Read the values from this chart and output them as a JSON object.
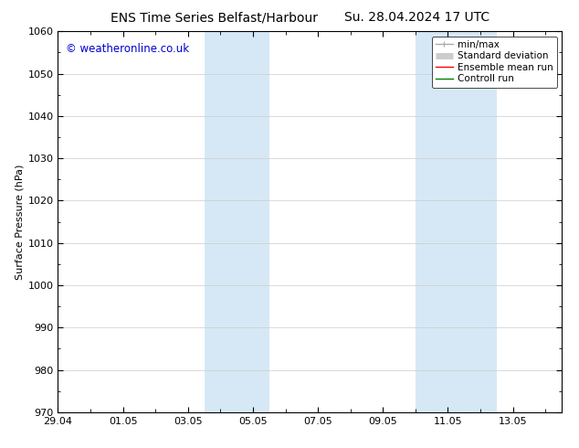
{
  "title_left": "ENS Time Series Belfast/Harbour",
  "title_right": "Su. 28.04.2024 17 UTC",
  "ylabel": "Surface Pressure (hPa)",
  "watermark": "© weatheronline.co.uk",
  "watermark_color": "#0000cc",
  "ylim": [
    970,
    1060
  ],
  "yticks": [
    970,
    980,
    990,
    1000,
    1010,
    1020,
    1030,
    1040,
    1050,
    1060
  ],
  "xlim": [
    0,
    15.5
  ],
  "xtick_labels": [
    "29.04",
    "01.05",
    "03.05",
    "05.05",
    "07.05",
    "09.05",
    "11.05",
    "13.05"
  ],
  "xtick_positions": [
    0,
    2,
    4,
    6,
    8,
    10,
    12,
    14
  ],
  "shaded_bands": [
    {
      "x_start": 4.5,
      "x_end": 6.5
    },
    {
      "x_start": 11.0,
      "x_end": 13.5
    }
  ],
  "shaded_color": "#d6e8f5",
  "background_color": "#ffffff",
  "grid_color": "#cccccc",
  "legend_entries": [
    {
      "label": "min/max",
      "color": "#aaaaaa",
      "lw": 1.0,
      "style": "minmax"
    },
    {
      "label": "Standard deviation",
      "color": "#cccccc",
      "lw": 5,
      "style": "band"
    },
    {
      "label": "Ensemble mean run",
      "color": "#ff0000",
      "lw": 1.0,
      "style": "line"
    },
    {
      "label": "Controll run",
      "color": "#008000",
      "lw": 1.0,
      "style": "line"
    }
  ],
  "spine_color": "#000000",
  "tick_color": "#000000",
  "title_fontsize": 10,
  "label_fontsize": 8,
  "tick_fontsize": 8,
  "watermark_fontsize": 8.5,
  "legend_fontsize": 7.5
}
